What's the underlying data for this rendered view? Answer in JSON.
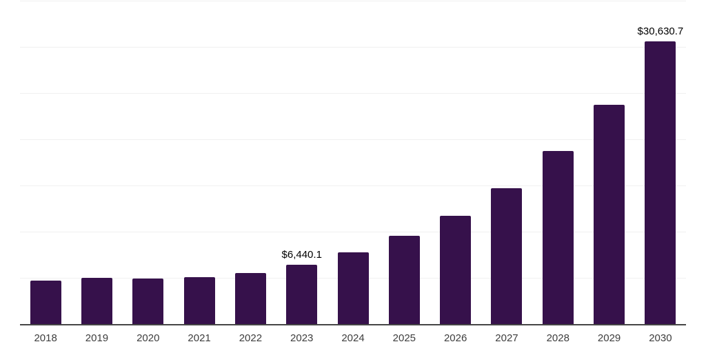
{
  "chart_data": {
    "type": "bar",
    "title": "",
    "xlabel": "",
    "ylabel": "",
    "categories": [
      "2018",
      "2019",
      "2020",
      "2021",
      "2022",
      "2023",
      "2024",
      "2025",
      "2026",
      "2027",
      "2028",
      "2029",
      "2030"
    ],
    "values": [
      4700,
      5000,
      4930,
      5100,
      5500,
      6440.1,
      7760,
      9530,
      11740,
      14720,
      18710,
      23760,
      30630.7
    ],
    "data_labels": {
      "2023": "$6,440.1",
      "2030": "$30,630.7"
    },
    "ylim": [
      0,
      35000
    ],
    "gridline_step": 5000,
    "grid": true,
    "legend": false,
    "y_axis_tick_labels_visible": false,
    "bar_color": "#36114B",
    "label_color": "#000000",
    "tick_color": "#3d3d3d",
    "axis_color": "#454545",
    "gridline_color": "#f0f0f0",
    "background": "#ffffff"
  }
}
